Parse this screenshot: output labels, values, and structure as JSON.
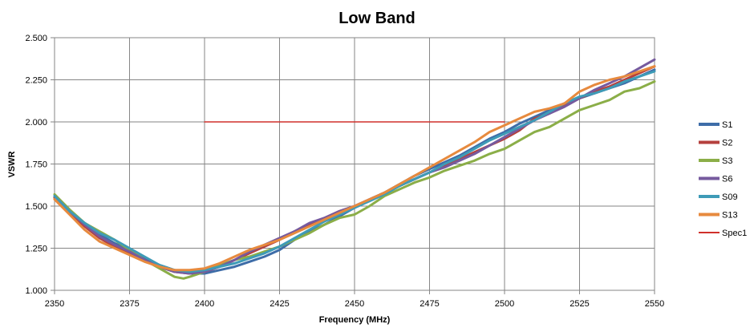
{
  "chart_data": {
    "type": "line",
    "title": "Low Band",
    "xlabel": "Frequency (MHz)",
    "ylabel": "VSWR",
    "xlim": [
      2350,
      2550
    ],
    "ylim": [
      1.0,
      2.5
    ],
    "xticks": [
      2350,
      2375,
      2400,
      2425,
      2450,
      2475,
      2500,
      2525,
      2550
    ],
    "yticks": [
      1.0,
      1.25,
      1.5,
      1.75,
      2.0,
      2.25,
      2.5
    ],
    "xtick_labels": [
      "2350",
      "2375",
      "2400",
      "2425",
      "2450",
      "2475",
      "2500",
      "2525",
      "2550"
    ],
    "ytick_labels": [
      "1.000",
      "1.250",
      "1.500",
      "1.750",
      "2.000",
      "2.250",
      "2.500"
    ],
    "grid": true,
    "legend_position": "right",
    "series": [
      {
        "name": "S1",
        "color": "#3E6DA8",
        "x": [
          2350,
          2355,
          2360,
          2365,
          2370,
          2375,
          2380,
          2385,
          2390,
          2395,
          2400,
          2405,
          2410,
          2415,
          2420,
          2425,
          2430,
          2435,
          2440,
          2445,
          2450,
          2455,
          2460,
          2465,
          2470,
          2475,
          2480,
          2485,
          2490,
          2495,
          2500,
          2505,
          2510,
          2515,
          2520,
          2525,
          2530,
          2535,
          2540,
          2545,
          2550
        ],
        "y": [
          1.55,
          1.47,
          1.4,
          1.33,
          1.28,
          1.24,
          1.19,
          1.15,
          1.12,
          1.1,
          1.1,
          1.12,
          1.14,
          1.17,
          1.2,
          1.24,
          1.3,
          1.35,
          1.39,
          1.44,
          1.49,
          1.54,
          1.58,
          1.63,
          1.68,
          1.72,
          1.76,
          1.8,
          1.85,
          1.9,
          1.94,
          1.99,
          2.03,
          2.07,
          2.11,
          2.14,
          2.17,
          2.2,
          2.23,
          2.27,
          2.31
        ]
      },
      {
        "name": "S2",
        "color": "#B5403D",
        "x": [
          2350,
          2355,
          2360,
          2365,
          2370,
          2375,
          2380,
          2385,
          2390,
          2395,
          2400,
          2405,
          2410,
          2415,
          2420,
          2425,
          2430,
          2435,
          2440,
          2445,
          2450,
          2455,
          2460,
          2465,
          2470,
          2475,
          2480,
          2485,
          2490,
          2495,
          2500,
          2505,
          2510,
          2515,
          2520,
          2525,
          2530,
          2535,
          2540,
          2545,
          2550
        ],
        "y": [
          1.55,
          1.46,
          1.38,
          1.31,
          1.26,
          1.22,
          1.18,
          1.14,
          1.11,
          1.1,
          1.11,
          1.14,
          1.18,
          1.22,
          1.26,
          1.3,
          1.35,
          1.39,
          1.43,
          1.47,
          1.5,
          1.54,
          1.58,
          1.62,
          1.66,
          1.7,
          1.74,
          1.78,
          1.82,
          1.86,
          1.9,
          1.95,
          2.02,
          2.05,
          2.1,
          2.14,
          2.18,
          2.21,
          2.25,
          2.29,
          2.33
        ]
      },
      {
        "name": "S3",
        "color": "#8BAE48",
        "x": [
          2350,
          2355,
          2360,
          2365,
          2370,
          2375,
          2380,
          2385,
          2390,
          2393,
          2395,
          2400,
          2405,
          2410,
          2415,
          2420,
          2425,
          2430,
          2435,
          2440,
          2445,
          2450,
          2455,
          2460,
          2465,
          2470,
          2475,
          2480,
          2485,
          2490,
          2495,
          2500,
          2505,
          2510,
          2515,
          2520,
          2525,
          2530,
          2535,
          2540,
          2545,
          2550
        ],
        "y": [
          1.57,
          1.48,
          1.4,
          1.35,
          1.3,
          1.24,
          1.18,
          1.13,
          1.08,
          1.07,
          1.08,
          1.11,
          1.15,
          1.18,
          1.2,
          1.23,
          1.26,
          1.3,
          1.34,
          1.39,
          1.43,
          1.45,
          1.5,
          1.56,
          1.6,
          1.64,
          1.67,
          1.71,
          1.74,
          1.77,
          1.81,
          1.84,
          1.89,
          1.94,
          1.97,
          2.02,
          2.07,
          2.1,
          2.13,
          2.18,
          2.2,
          2.24
        ]
      },
      {
        "name": "S6",
        "color": "#765A9E",
        "x": [
          2350,
          2355,
          2360,
          2365,
          2370,
          2375,
          2380,
          2385,
          2390,
          2395,
          2400,
          2405,
          2410,
          2415,
          2420,
          2425,
          2430,
          2435,
          2440,
          2445,
          2450,
          2455,
          2460,
          2465,
          2470,
          2475,
          2480,
          2485,
          2490,
          2495,
          2500,
          2505,
          2510,
          2515,
          2520,
          2525,
          2530,
          2535,
          2540,
          2545,
          2550
        ],
        "y": [
          1.56,
          1.47,
          1.39,
          1.32,
          1.27,
          1.23,
          1.18,
          1.14,
          1.11,
          1.1,
          1.11,
          1.14,
          1.18,
          1.23,
          1.27,
          1.31,
          1.35,
          1.4,
          1.43,
          1.47,
          1.5,
          1.54,
          1.58,
          1.62,
          1.66,
          1.7,
          1.73,
          1.77,
          1.81,
          1.86,
          1.91,
          1.96,
          2.01,
          2.05,
          2.09,
          2.14,
          2.19,
          2.23,
          2.27,
          2.32,
          2.37
        ]
      },
      {
        "name": "S09",
        "color": "#3E9BB7",
        "x": [
          2350,
          2355,
          2360,
          2365,
          2370,
          2375,
          2380,
          2385,
          2390,
          2395,
          2400,
          2405,
          2410,
          2415,
          2420,
          2425,
          2430,
          2435,
          2440,
          2445,
          2450,
          2455,
          2460,
          2465,
          2470,
          2475,
          2480,
          2485,
          2490,
          2495,
          2500,
          2505,
          2510,
          2515,
          2520,
          2525,
          2530,
          2535,
          2540,
          2545,
          2550
        ],
        "y": [
          1.56,
          1.47,
          1.4,
          1.34,
          1.3,
          1.25,
          1.2,
          1.15,
          1.12,
          1.11,
          1.12,
          1.14,
          1.16,
          1.19,
          1.22,
          1.26,
          1.31,
          1.36,
          1.41,
          1.45,
          1.49,
          1.53,
          1.57,
          1.62,
          1.66,
          1.7,
          1.75,
          1.79,
          1.84,
          1.89,
          1.93,
          1.97,
          2.01,
          2.06,
          2.11,
          2.15,
          2.17,
          2.2,
          2.24,
          2.27,
          2.3
        ]
      },
      {
        "name": "S13",
        "color": "#E78A3E",
        "x": [
          2350,
          2355,
          2360,
          2365,
          2370,
          2375,
          2380,
          2385,
          2390,
          2395,
          2400,
          2405,
          2410,
          2415,
          2420,
          2425,
          2430,
          2435,
          2440,
          2445,
          2450,
          2455,
          2460,
          2465,
          2470,
          2475,
          2480,
          2485,
          2490,
          2495,
          2500,
          2505,
          2510,
          2515,
          2520,
          2525,
          2530,
          2535,
          2540,
          2545,
          2550
        ],
        "y": [
          1.54,
          1.45,
          1.36,
          1.29,
          1.25,
          1.21,
          1.17,
          1.14,
          1.12,
          1.12,
          1.13,
          1.16,
          1.2,
          1.24,
          1.27,
          1.3,
          1.34,
          1.38,
          1.42,
          1.46,
          1.5,
          1.54,
          1.58,
          1.63,
          1.68,
          1.73,
          1.78,
          1.83,
          1.88,
          1.94,
          1.98,
          2.02,
          2.06,
          2.08,
          2.11,
          2.18,
          2.22,
          2.25,
          2.27,
          2.3,
          2.33
        ]
      },
      {
        "name": "Spec1",
        "color": "#D0302B",
        "x": [
          2400,
          2500
        ],
        "y": [
          2.0,
          2.0
        ]
      }
    ]
  }
}
